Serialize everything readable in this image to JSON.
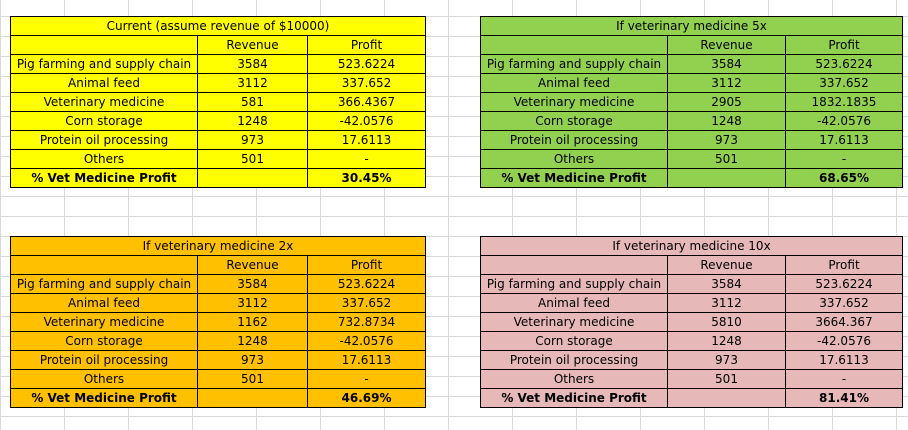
{
  "headers": {
    "revenue": "Revenue",
    "profit": "Profit"
  },
  "summary_label": "% Vet Medicine Profit",
  "current": {
    "title": "Current (assume revenue of $10000)",
    "rows": [
      {
        "label": "Pig farming and supply chain",
        "revenue": "3584",
        "profit": "523.6224"
      },
      {
        "label": "Animal feed",
        "revenue": "3112",
        "profit": "337.652"
      },
      {
        "label": "Veterinary medicine",
        "revenue": "581",
        "profit": "366.4367"
      },
      {
        "label": "Corn storage",
        "revenue": "1248",
        "profit": "-42.0576"
      },
      {
        "label": "Protein oil processing",
        "revenue": "973",
        "profit": "17.6113"
      },
      {
        "label": "Others",
        "revenue": "501",
        "profit": "-"
      }
    ],
    "summary_value": "30.45%"
  },
  "x5": {
    "title": "If veterinary medicine 5x",
    "rows": [
      {
        "label": "Pig farming and supply chain",
        "revenue": "3584",
        "profit": "523.6224"
      },
      {
        "label": "Animal feed",
        "revenue": "3112",
        "profit": "337.652"
      },
      {
        "label": "Veterinary medicine",
        "revenue": "2905",
        "profit": "1832.1835"
      },
      {
        "label": "Corn storage",
        "revenue": "1248",
        "profit": "-42.0576"
      },
      {
        "label": "Protein oil processing",
        "revenue": "973",
        "profit": "17.6113"
      },
      {
        "label": "Others",
        "revenue": "501",
        "profit": "-"
      }
    ],
    "summary_value": "68.65%"
  },
  "x2": {
    "title": "If veterinary medicine 2x",
    "rows": [
      {
        "label": "Pig farming and supply chain",
        "revenue": "3584",
        "profit": "523.6224"
      },
      {
        "label": "Animal feed",
        "revenue": "3112",
        "profit": "337.652"
      },
      {
        "label": "Veterinary medicine",
        "revenue": "1162",
        "profit": "732.8734"
      },
      {
        "label": "Corn storage",
        "revenue": "1248",
        "profit": "-42.0576"
      },
      {
        "label": "Protein oil processing",
        "revenue": "973",
        "profit": "17.6113"
      },
      {
        "label": "Others",
        "revenue": "501",
        "profit": "-"
      }
    ],
    "summary_value": "46.69%"
  },
  "x10": {
    "title": "If veterinary medicine 10x",
    "rows": [
      {
        "label": "Pig farming and supply chain",
        "revenue": "3584",
        "profit": "523.6224"
      },
      {
        "label": "Animal feed",
        "revenue": "3112",
        "profit": "337.652"
      },
      {
        "label": "Veterinary medicine",
        "revenue": "5810",
        "profit": "3664.367"
      },
      {
        "label": "Corn storage",
        "revenue": "1248",
        "profit": "-42.0576"
      },
      {
        "label": "Protein oil processing",
        "revenue": "973",
        "profit": "17.6113"
      },
      {
        "label": "Others",
        "revenue": "501",
        "profit": "-"
      }
    ],
    "summary_value": "81.41%"
  },
  "colors": {
    "current": "#ffff00",
    "x5": "#92d050",
    "x2": "#ffc000",
    "x10": "#e6b8b7",
    "gridline": "#d9d9d9"
  }
}
